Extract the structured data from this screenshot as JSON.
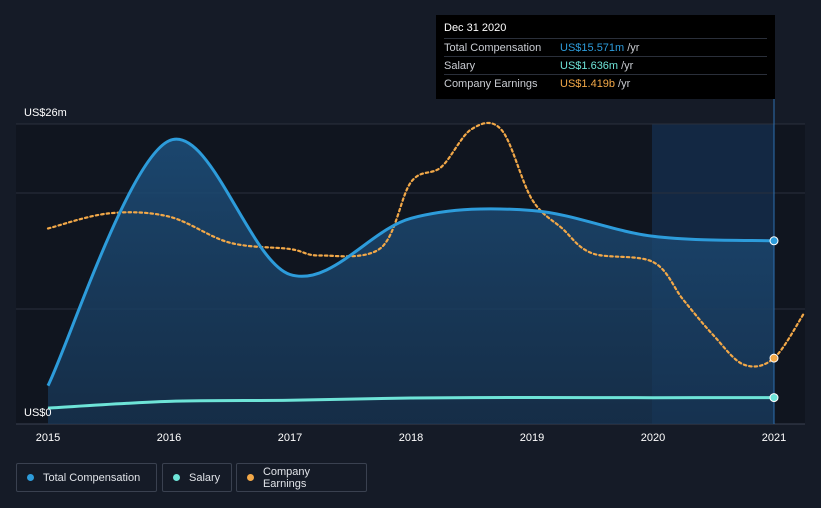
{
  "tooltip": {
    "date": "Dec 31 2020",
    "rows": [
      {
        "label": "Total Compensation",
        "value": "US$15.571m",
        "unit": "/yr",
        "color": "#2d9cdb"
      },
      {
        "label": "Salary",
        "value": "US$1.636m",
        "unit": "/yr",
        "color": "#6ee4d8"
      },
      {
        "label": "Company Earnings",
        "value": "US$1.419b",
        "unit": "/yr",
        "color": "#f2a848"
      }
    ]
  },
  "legend": {
    "total_compensation": "Total Compensation",
    "salary": "Salary",
    "company_earnings": "Company Earnings"
  },
  "colors": {
    "background": "#151b27",
    "total_compensation": "#2d9cdb",
    "salary": "#6ee4d8",
    "company_earnings": "#f2a848"
  },
  "chart_data": {
    "type": "line",
    "y_axis_labels": [
      "US$26m",
      "US$0"
    ],
    "ylim": [
      0,
      26
    ],
    "xlim": [
      2015,
      2021.25
    ],
    "x_ticks": [
      "2015",
      "2016",
      "2017",
      "2018",
      "2019",
      "2020",
      "2021"
    ],
    "highlight_range": [
      2020,
      2021
    ],
    "series": [
      {
        "name": "Total Compensation",
        "unit": "US$m",
        "points": [
          [
            2015,
            2.7
          ],
          [
            2016,
            24.5
          ],
          [
            2017,
            12.6
          ],
          [
            2018,
            17.6
          ],
          [
            2019,
            18.3
          ],
          [
            2020,
            16.0
          ],
          [
            2021,
            15.6
          ]
        ]
      },
      {
        "name": "Salary",
        "unit": "US$m",
        "points": [
          [
            2015,
            0.7
          ],
          [
            2016,
            1.3
          ],
          [
            2017,
            1.4
          ],
          [
            2018,
            1.6
          ],
          [
            2019,
            1.65
          ],
          [
            2020,
            1.63
          ],
          [
            2021,
            1.64
          ]
        ]
      },
      {
        "name": "Company Earnings",
        "unit": "US$b",
        "points": [
          [
            2015,
            1.81
          ],
          [
            2015.5,
            1.95
          ],
          [
            2016,
            1.92
          ],
          [
            2016.5,
            1.68
          ],
          [
            2017,
            1.62
          ],
          [
            2017.25,
            1.56
          ],
          [
            2017.75,
            1.63
          ],
          [
            2018,
            2.24
          ],
          [
            2018.25,
            2.38
          ],
          [
            2018.5,
            2.73
          ],
          [
            2018.75,
            2.72
          ],
          [
            2019,
            2.08
          ],
          [
            2019.25,
            1.81
          ],
          [
            2019.5,
            1.58
          ],
          [
            2020,
            1.5
          ],
          [
            2020.25,
            1.15
          ],
          [
            2020.5,
            0.82
          ],
          [
            2020.75,
            0.55
          ],
          [
            2021,
            0.61
          ],
          [
            2021.25,
            1.03
          ]
        ]
      }
    ]
  }
}
